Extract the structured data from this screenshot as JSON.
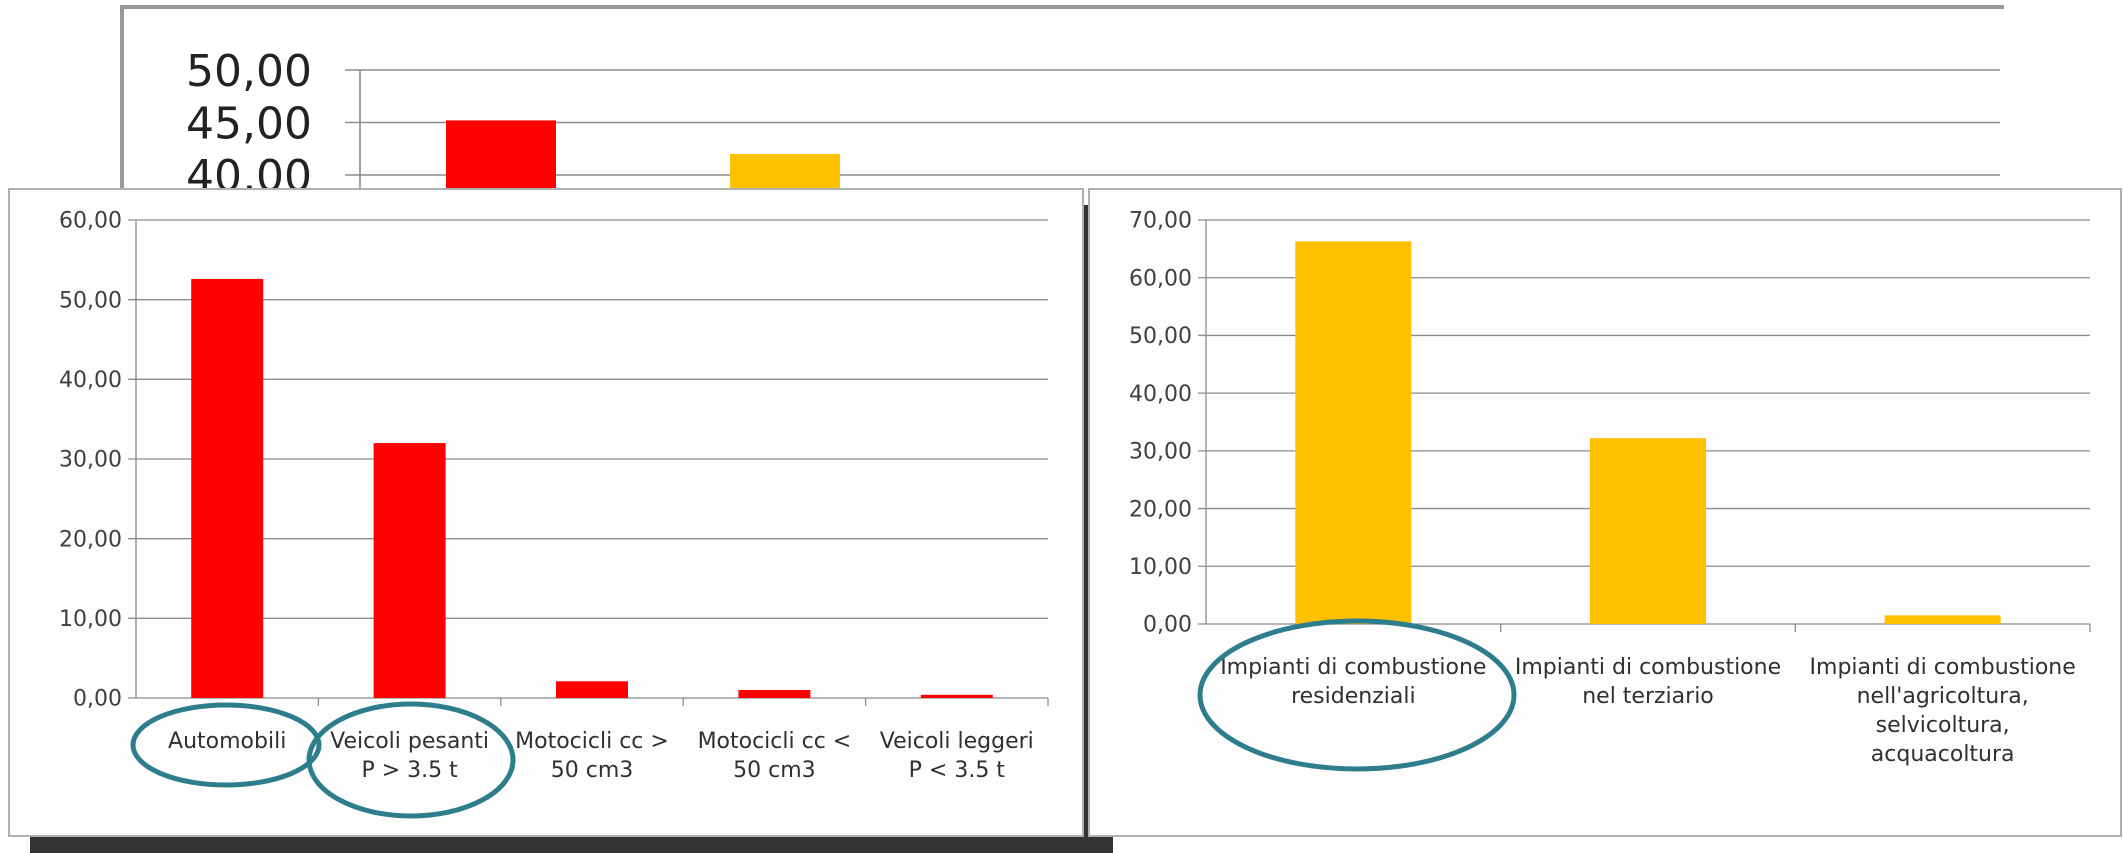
{
  "chart_data": [
    {
      "type": "bar",
      "categories": [
        "",
        ""
      ],
      "values": [
        45.2,
        42.0
      ],
      "colors": [
        "#ff0000",
        "#ffc000"
      ],
      "yticks": [
        "50,00",
        "45,00",
        "40,00"
      ],
      "ylim": [
        40,
        50
      ],
      "grid": true,
      "partially_hidden": true
    },
    {
      "type": "bar",
      "categories": [
        [
          "Automobili"
        ],
        [
          "Veicoli pesanti",
          "P > 3.5 t"
        ],
        [
          "Motocicli cc >",
          "50 cm3"
        ],
        [
          "Motocicli cc <",
          "50 cm3"
        ],
        [
          "Veicoli leggeri",
          "P < 3.5 t"
        ]
      ],
      "values": [
        52.6,
        32.0,
        2.1,
        1.0,
        0.4
      ],
      "bar_color": "#ff0000",
      "yticks": [
        "0,00",
        "10,00",
        "20,00",
        "30,00",
        "40,00",
        "50,00",
        "60,00"
      ],
      "ylim": [
        0,
        60
      ],
      "grid": true,
      "highlighted_categories": [
        "Automobili",
        "Veicoli pesanti"
      ]
    },
    {
      "type": "bar",
      "categories": [
        [
          "Impianti di combustione",
          "residenziali"
        ],
        [
          "Impianti di combustione",
          "nel terziario"
        ],
        [
          "Impianti di combustione",
          "nell'agricoltura,",
          "selvicoltura,",
          "acquacoltura"
        ]
      ],
      "values": [
        66.3,
        32.2,
        1.5
      ],
      "bar_color": "#ffc000",
      "yticks": [
        "0,00",
        "10,00",
        "20,00",
        "30,00",
        "40,00",
        "50,00",
        "60,00",
        "70,00"
      ],
      "ylim": [
        0,
        70
      ],
      "grid": true,
      "highlighted_categories": [
        "Impianti di combustione residenziali"
      ]
    }
  ],
  "colors": {
    "highlight_ring": "#2e7d8c",
    "grid": "#8c8c8c",
    "shadow": "#333333"
  }
}
